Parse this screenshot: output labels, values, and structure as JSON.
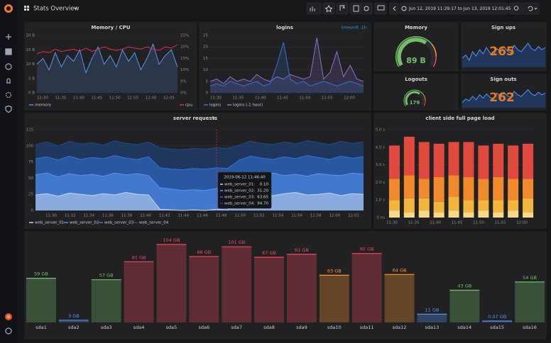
{
  "header": {
    "title": "Stats Overview",
    "time_range": "Jun 12, 2019 11:29:17 to Jun 13, 2019 12:01:45"
  },
  "memory_cpu": {
    "type": "line",
    "title": "Memory / CPU",
    "xticks": [
      "11:30",
      "11:35",
      "11:40",
      "11:45",
      "11:50",
      "11:55",
      "12:00",
      "12:05"
    ],
    "ylim": [
      0,
      20
    ],
    "yticks": [
      {
        "value": 0,
        "label": "0 B"
      },
      {
        "value": 5,
        "label": "5 B"
      },
      {
        "value": 10,
        "label": "10 B"
      },
      {
        "value": 15,
        "label": "15 B"
      },
      {
        "value": 20,
        "label": "20 B"
      }
    ],
    "y2lim": [
      0,
      25
    ],
    "y2ticks": [
      {
        "value": 0,
        "label": "0%"
      },
      {
        "value": 5,
        "label": "5%"
      },
      {
        "value": 10,
        "label": "10%"
      },
      {
        "value": 15,
        "label": "15%"
      },
      {
        "value": 20,
        "label": "20%"
      },
      {
        "value": 25,
        "label": "25%"
      }
    ],
    "grid": true,
    "series": [
      {
        "name": "memory",
        "color": "#5794f2",
        "fill": true,
        "values": [
          10,
          12,
          8,
          14,
          9,
          13,
          11,
          15,
          7,
          12,
          16,
          10,
          13,
          9,
          15,
          11,
          14,
          8,
          12,
          17,
          10,
          13,
          15,
          9
        ]
      },
      {
        "name": "cpu",
        "color": "#e02f44",
        "axis": "y2",
        "values": [
          17,
          18,
          17.5,
          19,
          18,
          18.5,
          19,
          18,
          19.5,
          18,
          19,
          20,
          19,
          18.5,
          19,
          20,
          19.5,
          19,
          20,
          19,
          18.5,
          20,
          19.5,
          21
        ]
      }
    ]
  },
  "logins": {
    "type": "line",
    "title": "logins",
    "link": "timeshift -1h",
    "xticks": [
      "11:30",
      "11:35",
      "11:40",
      "11:45",
      "11:50",
      "11:55",
      "12:00"
    ],
    "ylim": [
      0,
      25
    ],
    "yticks": [
      0,
      5,
      10,
      15,
      20,
      25
    ],
    "grid": true,
    "series": [
      {
        "name": "logins",
        "color": "#3274d9",
        "fill": true,
        "values": [
          3,
          4,
          3,
          5,
          4,
          3,
          4,
          5,
          3,
          4,
          12,
          22,
          6,
          4,
          5,
          3,
          4,
          5,
          4,
          3,
          4,
          5,
          4,
          3
        ]
      },
      {
        "name": "logins (-1 hour)",
        "color": "#8f6fd0",
        "fill": true,
        "values": [
          5,
          6,
          4,
          7,
          5,
          6,
          5,
          8,
          6,
          5,
          7,
          6,
          8,
          7,
          6,
          7,
          24,
          6,
          9,
          18,
          7,
          12,
          6,
          5
        ]
      }
    ]
  },
  "memory_gauge": {
    "title": "Memory",
    "value": "89 B"
  },
  "sign_ups": {
    "title": "Sign ups",
    "value": 265,
    "sparkline": [
      52,
      55,
      50,
      58,
      54,
      60,
      56,
      62,
      57,
      55,
      61,
      58,
      63,
      59,
      57,
      64,
      60,
      58,
      62,
      66,
      61,
      59,
      63,
      60,
      62
    ]
  },
  "logouts": {
    "title": "Logouts",
    "value": 179
  },
  "sign_outs": {
    "title": "Sign outs",
    "value": 262,
    "sparkline": [
      48,
      52,
      50,
      55,
      51,
      57,
      53,
      58,
      54,
      52,
      59,
      55,
      60,
      56,
      54,
      61,
      57,
      55,
      59,
      63,
      58,
      56,
      60,
      57,
      59
    ]
  },
  "server_requests": {
    "type": "line",
    "title": "server requests",
    "xticks": [
      "11:30",
      "11:32",
      "11:34",
      "11:36",
      "11:38",
      "11:40",
      "11:42",
      "11:44",
      "11:46",
      "11:48",
      "11:50",
      "11:52",
      "11:54",
      "11:56",
      "11:58",
      "12:00",
      "12:02"
    ],
    "ylim": [
      0,
      125
    ],
    "yticks": [
      0,
      25,
      50,
      75,
      100,
      125
    ],
    "grid": true,
    "series": [
      {
        "name": "web_server_01",
        "color": "#c4d6ee",
        "fill": true,
        "values": [
          24,
          26,
          22,
          27,
          25,
          23,
          26,
          24,
          28,
          25,
          24,
          2,
          1,
          0,
          1,
          0,
          2,
          1,
          24,
          27,
          25,
          23,
          26,
          28,
          24,
          25,
          27,
          23,
          26,
          25
        ]
      },
      {
        "name": "web_server_02",
        "color": "#5794f2",
        "fill": true,
        "values": [
          55,
          58,
          52,
          57,
          54,
          56,
          53,
          58,
          55,
          57,
          54,
          35,
          33,
          31,
          32,
          31,
          34,
          33,
          52,
          57,
          55,
          58,
          54,
          56,
          53,
          57,
          55,
          54,
          58,
          56
        ]
      },
      {
        "name": "web_server_03",
        "color": "#3274d9",
        "fill": true,
        "values": [
          80,
          83,
          78,
          84,
          79,
          82,
          80,
          85,
          81,
          79,
          83,
          66,
          64,
          63,
          65,
          64,
          66,
          65,
          78,
          84,
          81,
          79,
          83,
          80,
          85,
          82,
          79,
          84,
          81,
          83
        ]
      },
      {
        "name": "web_server_04",
        "color": "#1f4a8c",
        "fill": true,
        "values": [
          102,
          106,
          100,
          107,
          103,
          105,
          101,
          108,
          104,
          102,
          106,
          97,
          95,
          94,
          96,
          95,
          97,
          96,
          101,
          107,
          104,
          102,
          106,
          103,
          108,
          105,
          102,
          107,
          104,
          106
        ]
      }
    ],
    "tooltip": {
      "title": "2019-06-12 11:46:40",
      "rows": [
        {
          "name": "web_server_01:",
          "value": "0.10"
        },
        {
          "name": "web_server_02:",
          "value": "31.20"
        },
        {
          "name": "web_server_03:",
          "value": "63.65"
        },
        {
          "name": "web_server_04:",
          "value": "94.70"
        }
      ]
    }
  },
  "client_load": {
    "type": "stacked_bar",
    "title": "client side full page load",
    "xticks": [
      "11:30",
      "11:35",
      "11:40",
      "11:45",
      "11:50",
      "11:55",
      "12:00"
    ],
    "ylim": [
      0,
      5
    ],
    "yticks": [
      {
        "value": 0,
        "label": "0 ns"
      },
      {
        "value": 1,
        "label": "1.0 s"
      },
      {
        "value": 2,
        "label": "2.0 s"
      },
      {
        "value": 3,
        "label": "3.0 s"
      },
      {
        "value": 4,
        "label": "4.0 s"
      },
      {
        "value": 5,
        "label": "5.0 s"
      }
    ],
    "series": [
      {
        "color": "#f8d889",
        "values": [
          0.4,
          0.3,
          0.4,
          0.3,
          0.4,
          0.3,
          0.4,
          0.3,
          0.4,
          0.3
        ]
      },
      {
        "color": "#f2b53d",
        "values": [
          0.6,
          0.8,
          0.7,
          0.6,
          0.8,
          0.7,
          0.6,
          0.7,
          0.6,
          0.8
        ]
      },
      {
        "color": "#f08a2c",
        "values": [
          1.2,
          1.3,
          1.1,
          1.4,
          1.2,
          1.3,
          1.2,
          1.3,
          1.2,
          1.1
        ]
      },
      {
        "color": "#e0493d",
        "values": [
          1.9,
          2.2,
          2.1,
          1.9,
          1.9,
          2.0,
          1.9,
          1.9,
          1.9,
          2.0
        ]
      }
    ]
  },
  "disks": {
    "type": "bar_gauge",
    "categories": [
      "sda1",
      "sda2",
      "sda3",
      "sda4",
      "sda5",
      "sda6",
      "sda7",
      "sda8",
      "sda9",
      "sda10",
      "sda11",
      "sda12",
      "sda13",
      "sda14",
      "sda15",
      "sda16"
    ],
    "values": [
      59,
      3,
      57,
      81,
      104,
      88,
      101,
      87,
      91,
      63,
      92,
      64,
      11,
      43,
      0.07,
      54
    ],
    "value_labels": [
      "59 GB",
      "3 GB",
      "57 GB",
      "81 GB",
      "104 GB",
      "88 GB",
      "101 GB",
      "87 GB",
      "91 GB",
      "63 GB",
      "92 GB",
      "64 GB",
      "11 GB",
      "43 GB",
      "0.07 GB",
      "54 GB"
    ],
    "colors": [
      "#73bf69",
      "#5794f2",
      "#73bf69",
      "#f2495c",
      "#f2495c",
      "#f2495c",
      "#f2495c",
      "#f2495c",
      "#f2495c",
      "#ff9830",
      "#f2495c",
      "#ff9830",
      "#5794f2",
      "#73bf69",
      "#5794f2",
      "#73bf69"
    ]
  }
}
